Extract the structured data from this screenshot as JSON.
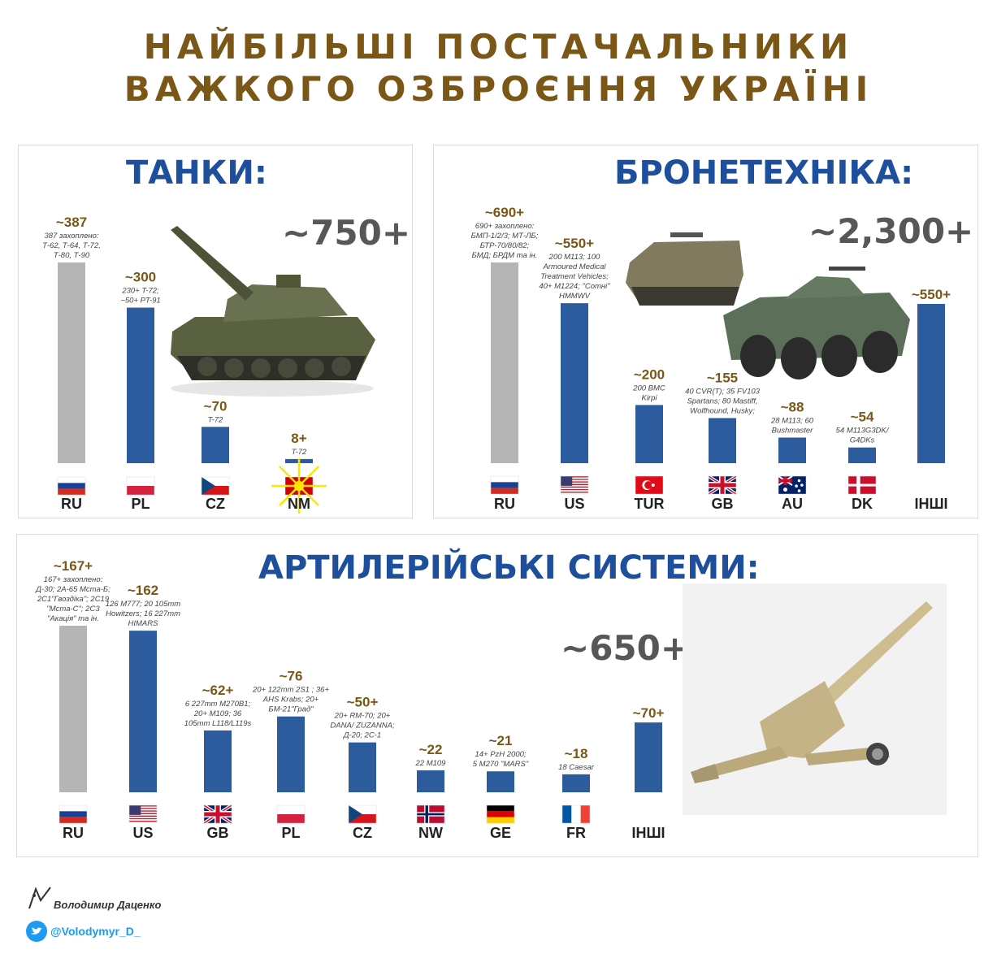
{
  "title": {
    "line1": "НАЙБІЛЬШІ ПОСТАЧАЛЬНИКИ",
    "line2": "ВАЖКОГО ОЗБРОЄННЯ УКРАЇНІ"
  },
  "colors": {
    "title": "#7a5716",
    "panel_title": "#1d4f9c",
    "bar_blue": "#2c5b9e",
    "bar_grey": "#b5b5b5",
    "total": "#575757"
  },
  "tanks": {
    "title": "ТАНКИ:",
    "total": "~750+",
    "image": "tank-illustration"
  },
  "armor": {
    "title": "БРОНЕТЕХНІКА:",
    "total": "~2,300+",
    "image": "apc-illustration"
  },
  "artillery": {
    "title": "АРТИЛЕРІЙСЬКІ СИСТЕМИ:",
    "total": "~650+",
    "image": "howitzer-illustration"
  },
  "footer": {
    "author": "Володимир Даценко",
    "twitter": "@Volodymyr_D_",
    "logo_icon": "author-logo-icon",
    "twitter_icon": "twitter-bird-icon"
  },
  "chart_data": [
    {
      "type": "bar",
      "title": "ТАНКИ:",
      "categories": [
        "RU",
        "PL",
        "CZ",
        "NM"
      ],
      "values": [
        387,
        300,
        70,
        8
      ],
      "value_labels": [
        "~387",
        "~300",
        "~70",
        "8+"
      ],
      "notes": [
        [
          "387 захоплено:",
          "Т-62, Т-64, Т-72,",
          "Т-80, Т-90"
        ],
        [
          "230+ T-72;",
          "~50+ PT-91"
        ],
        [
          "T-72"
        ],
        [
          "T-72"
        ]
      ],
      "flags": [
        "ru",
        "pl",
        "cz",
        "mk"
      ],
      "highlight": [
        true,
        false,
        false,
        false
      ]
    },
    {
      "type": "bar",
      "title": "БРОНЕТЕХНІКА:",
      "categories": [
        "RU",
        "US",
        "TUR",
        "GB",
        "AU",
        "DK",
        "ІНШІ"
      ],
      "values": [
        690,
        550,
        200,
        155,
        88,
        54,
        550
      ],
      "value_labels": [
        "~690+",
        "~550+",
        "~200",
        "~155",
        "~88",
        "~54",
        "~550+"
      ],
      "notes": [
        [
          "690+ захоплено:",
          "БМП-1/2/3; МТ-ЛБ;",
          "БТР-70/80/82;",
          "БМД; БРДМ та ін."
        ],
        [
          "200 M113; 100",
          "Armoured Medical",
          "Treatment Vehicles;",
          "40+ M1224; \"Сотні\"",
          "HMMWV"
        ],
        [
          "200 BMC",
          "Kirpi"
        ],
        [
          "40 CVR(T); 35 FV103",
          "Spartans; 80 Mastiff,",
          "Wolfhound, Husky;"
        ],
        [
          "28 M113; 60",
          "Bushmaster"
        ],
        [
          "54 M113G3DK/",
          "G4DKs"
        ],
        []
      ],
      "flags": [
        "ru",
        "us",
        "tr",
        "gb",
        "au",
        "dk",
        ""
      ],
      "highlight": [
        true,
        false,
        false,
        false,
        false,
        false,
        false
      ]
    },
    {
      "type": "bar",
      "title": "АРТИЛЕРІЙСЬКІ СИСТЕМИ:",
      "categories": [
        "RU",
        "US",
        "GB",
        "PL",
        "CZ",
        "NW",
        "GE",
        "FR",
        "ІНШІ"
      ],
      "values": [
        167,
        162,
        62,
        76,
        50,
        22,
        21,
        18,
        70
      ],
      "value_labels": [
        "~167+",
        "~162",
        "~62+",
        "~76",
        "~50+",
        "~22",
        "~21",
        "~18",
        "~70+"
      ],
      "notes": [
        [
          "167+ захоплено:",
          "Д-30; 2А-65 Мста-Б;",
          "2С1\"Гвоздіка\"; 2С19",
          "\"Мста-С\"; 2С3",
          "\"Акація\" та ін."
        ],
        [
          "126 M777; 20 105mm",
          "Howitzers; 16 227mm",
          "HIMARS"
        ],
        [
          "6 227mm M270B1;",
          "20+ M109; 36",
          "105mm L118/L119s"
        ],
        [
          "20+ 122mm 2S1 ; 36+",
          "AHS Krabs; 20+",
          "БМ-21\"Град\""
        ],
        [
          "20+ RM-70; 20+",
          "DANA/ ZUZANNA;",
          "Д-20; 2С-1"
        ],
        [
          "22 M109"
        ],
        [
          "14+ PzH 2000;",
          "5 M270 \"MARS\""
        ],
        [
          "18 Caesar"
        ],
        []
      ],
      "flags": [
        "ru",
        "us",
        "gb",
        "pl",
        "cz",
        "no",
        "de",
        "fr",
        ""
      ],
      "highlight": [
        true,
        false,
        false,
        false,
        false,
        false,
        false,
        false,
        false
      ]
    }
  ]
}
